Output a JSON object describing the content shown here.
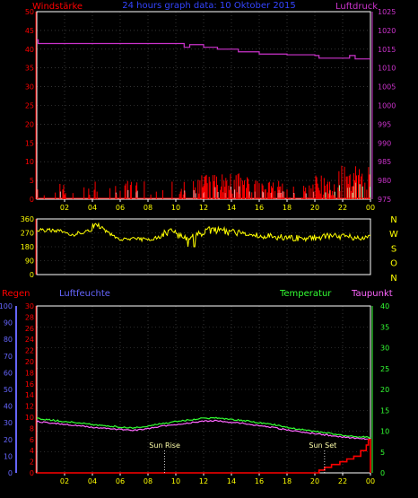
{
  "header": {
    "title": "24 hours graph data:  10 Oktober 2015",
    "wind_label": "Windstärke",
    "pressure_label": "Luftdruck"
  },
  "colors": {
    "background": "#000000",
    "plot_border": "#ffffff",
    "grid": "#555555",
    "wind": "#ff0000",
    "gust": "#ffb0b0",
    "gust2": "#b8ffb8",
    "pressure": "#cc33cc",
    "direction": "#ffff00",
    "temperature": "#33ff33",
    "dewpoint": "#ff66ff",
    "rain": "#ff0000",
    "humidity": "#6666ff",
    "title": "#3344ff",
    "tick": "#ffff00",
    "dir_labels": "#ffff00",
    "sun_text": "#ffffaa"
  },
  "x_axis": {
    "ticks": [
      "02",
      "04",
      "06",
      "08",
      "10",
      "12",
      "14",
      "16",
      "18",
      "20",
      "22",
      "00"
    ]
  },
  "direction": {
    "labels": [
      "N",
      "W",
      "S",
      "O",
      "N"
    ]
  },
  "lower_labels": {
    "rain": "Regen",
    "humidity": "Luftfeuchte",
    "temperature": "Temperatur",
    "dewpoint": "Taupunkt",
    "sunrise": "Sun Rise",
    "sunset": "Sun Set"
  },
  "chart_data": [
    {
      "type": "bar",
      "name": "wind",
      "left_axis": {
        "label": "Windstärke",
        "ticks": [
          0,
          5,
          10,
          15,
          20,
          25,
          30,
          35,
          40,
          45,
          50
        ],
        "ylim": [
          0,
          50
        ]
      },
      "right_axis": {
        "label": "Luftdruck",
        "ticks": [
          975,
          980,
          985,
          990,
          995,
          1000,
          1005,
          1010,
          1015,
          1020,
          1025
        ],
        "ylim": [
          975,
          1025
        ]
      },
      "x_hours": [
        0,
        24
      ],
      "wind_avg_hint": "mostly 0–5, bursts up to ~9 after 12h and 20h",
      "pressure": {
        "x": [
          0,
          0.1,
          1,
          9.8,
          10.6,
          11.0,
          12.0,
          13.0,
          14.5,
          16.0,
          18.0,
          20.0,
          20.3,
          22.0,
          22.5,
          22.9,
          24.0
        ],
        "y": [
          1017.5,
          1016.5,
          1016.5,
          1016.5,
          1015.5,
          1016.2,
          1015.5,
          1015.0,
          1014.3,
          1013.7,
          1013.5,
          1013.3,
          1012.6,
          1012.6,
          1013.3,
          1012.4,
          1012.4
        ]
      }
    },
    {
      "type": "line",
      "name": "wind_direction",
      "left_axis": {
        "ticks": [
          0,
          90,
          180,
          270,
          360
        ],
        "ylim": [
          0,
          360
        ]
      },
      "right_labels": [
        "N",
        "W",
        "S",
        "O",
        "N"
      ],
      "x": [
        0,
        1,
        2,
        2.5,
        3,
        4,
        4.2,
        5,
        6,
        7,
        8,
        9,
        9.5,
        10,
        10.5,
        11,
        12,
        12.5,
        13,
        14,
        15,
        16,
        17,
        18,
        19,
        20,
        21,
        22,
        23,
        24
      ],
      "y": [
        285,
        290,
        280,
        250,
        270,
        285,
        330,
        280,
        225,
        230,
        225,
        245,
        290,
        260,
        230,
        245,
        260,
        290,
        280,
        275,
        265,
        250,
        245,
        240,
        235,
        240,
        250,
        245,
        240,
        235
      ]
    },
    {
      "type": "line",
      "name": "temperature_rain",
      "left_axis_humidity": {
        "label": "Luftfeuchte",
        "ticks": [
          0,
          10,
          20,
          30,
          40,
          50,
          60,
          70,
          80,
          90,
          100
        ],
        "ylim": [
          0,
          100
        ]
      },
      "left_axis_rain": {
        "label": "Regen",
        "ticks": [
          0,
          2,
          4,
          6,
          8,
          10,
          12,
          14,
          16,
          18,
          20,
          22,
          24,
          26,
          28,
          30
        ],
        "ylim": [
          0,
          30
        ]
      },
      "right_axis_temperature": {
        "label": "Temperatur",
        "ticks": [
          0,
          5,
          10,
          15,
          20,
          25,
          30,
          35,
          40
        ],
        "ylim": [
          0,
          40
        ]
      },
      "x": [
        0,
        1,
        2,
        3,
        4,
        5,
        6,
        7,
        8,
        9,
        10,
        11,
        12,
        13,
        14,
        15,
        16,
        17,
        18,
        19,
        20,
        21,
        22,
        23,
        24
      ],
      "temperature": [
        13.0,
        12.7,
        12.3,
        12.0,
        11.6,
        11.3,
        11.0,
        10.8,
        11.2,
        11.8,
        12.3,
        12.7,
        13.1,
        13.2,
        12.8,
        12.5,
        12.0,
        11.6,
        10.9,
        10.4,
        10.0,
        9.5,
        9.0,
        8.7,
        8.5
      ],
      "dewpoint": [
        12.3,
        12.0,
        11.6,
        11.3,
        10.9,
        10.6,
        10.4,
        10.2,
        10.6,
        11.2,
        11.6,
        12.0,
        12.4,
        12.5,
        12.1,
        11.8,
        11.3,
        10.9,
        10.3,
        9.8,
        9.4,
        9.0,
        8.6,
        8.3,
        8.1
      ],
      "rain": {
        "x": [
          0,
          20.3,
          20.7,
          21.2,
          21.8,
          22.3,
          22.8,
          23.3,
          23.7,
          23.85,
          24
        ],
        "y": [
          0,
          0.5,
          1.0,
          1.5,
          2.0,
          2.5,
          3.0,
          4.0,
          5.0,
          6.0,
          0
        ]
      },
      "sunrise_hour": 9.2,
      "sunset_hour": 20.7
    }
  ]
}
